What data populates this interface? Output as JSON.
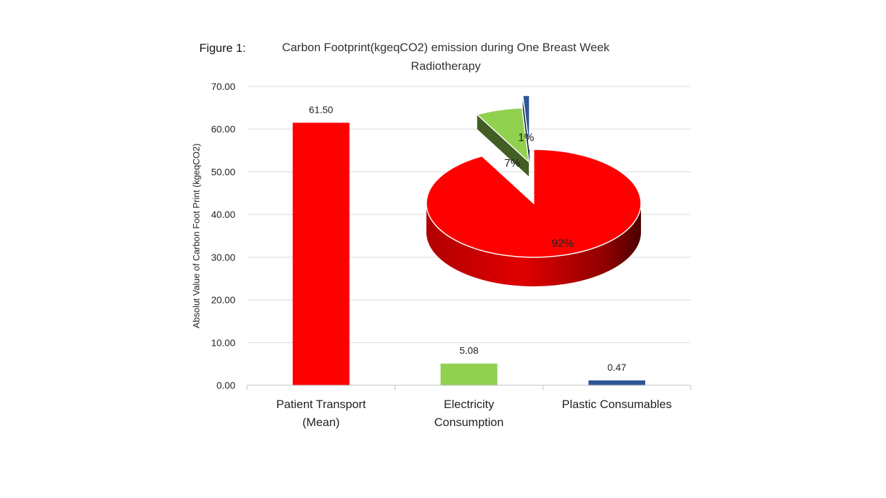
{
  "chart_data": [
    {
      "type": "bar",
      "title_prefix": "Figure 1:",
      "title_lines": [
        "Carbon Footprint(kgeqCO2) emission during One Breast Week",
        "Radiotherapy"
      ],
      "ylabel": "Absolut Value of Carbon Foot Print (kgeqCO2)",
      "xlabel": "",
      "ylim": [
        0,
        70
      ],
      "yticks": [
        "0.00",
        "10.00",
        "20.00",
        "30.00",
        "40.00",
        "50.00",
        "60.00",
        "70.00"
      ],
      "grid": true,
      "categories": [
        [
          "Patient Transport",
          "(Mean)"
        ],
        [
          "Electricity",
          "Consumption"
        ],
        [
          "Plastic Consumables"
        ]
      ],
      "values": [
        61.5,
        5.08,
        0.47
      ],
      "data_labels": [
        "61.50",
        "5.08",
        "0.47"
      ],
      "colors": [
        "#ff0000",
        "#92d050",
        "#2f5597"
      ]
    },
    {
      "type": "pie",
      "values": [
        92,
        7,
        1
      ],
      "labels": [
        "92%",
        "7%",
        "1%"
      ],
      "colors": [
        "#ff0000",
        "#92d050",
        "#2f5597"
      ],
      "style": "3d-exploded"
    }
  ]
}
